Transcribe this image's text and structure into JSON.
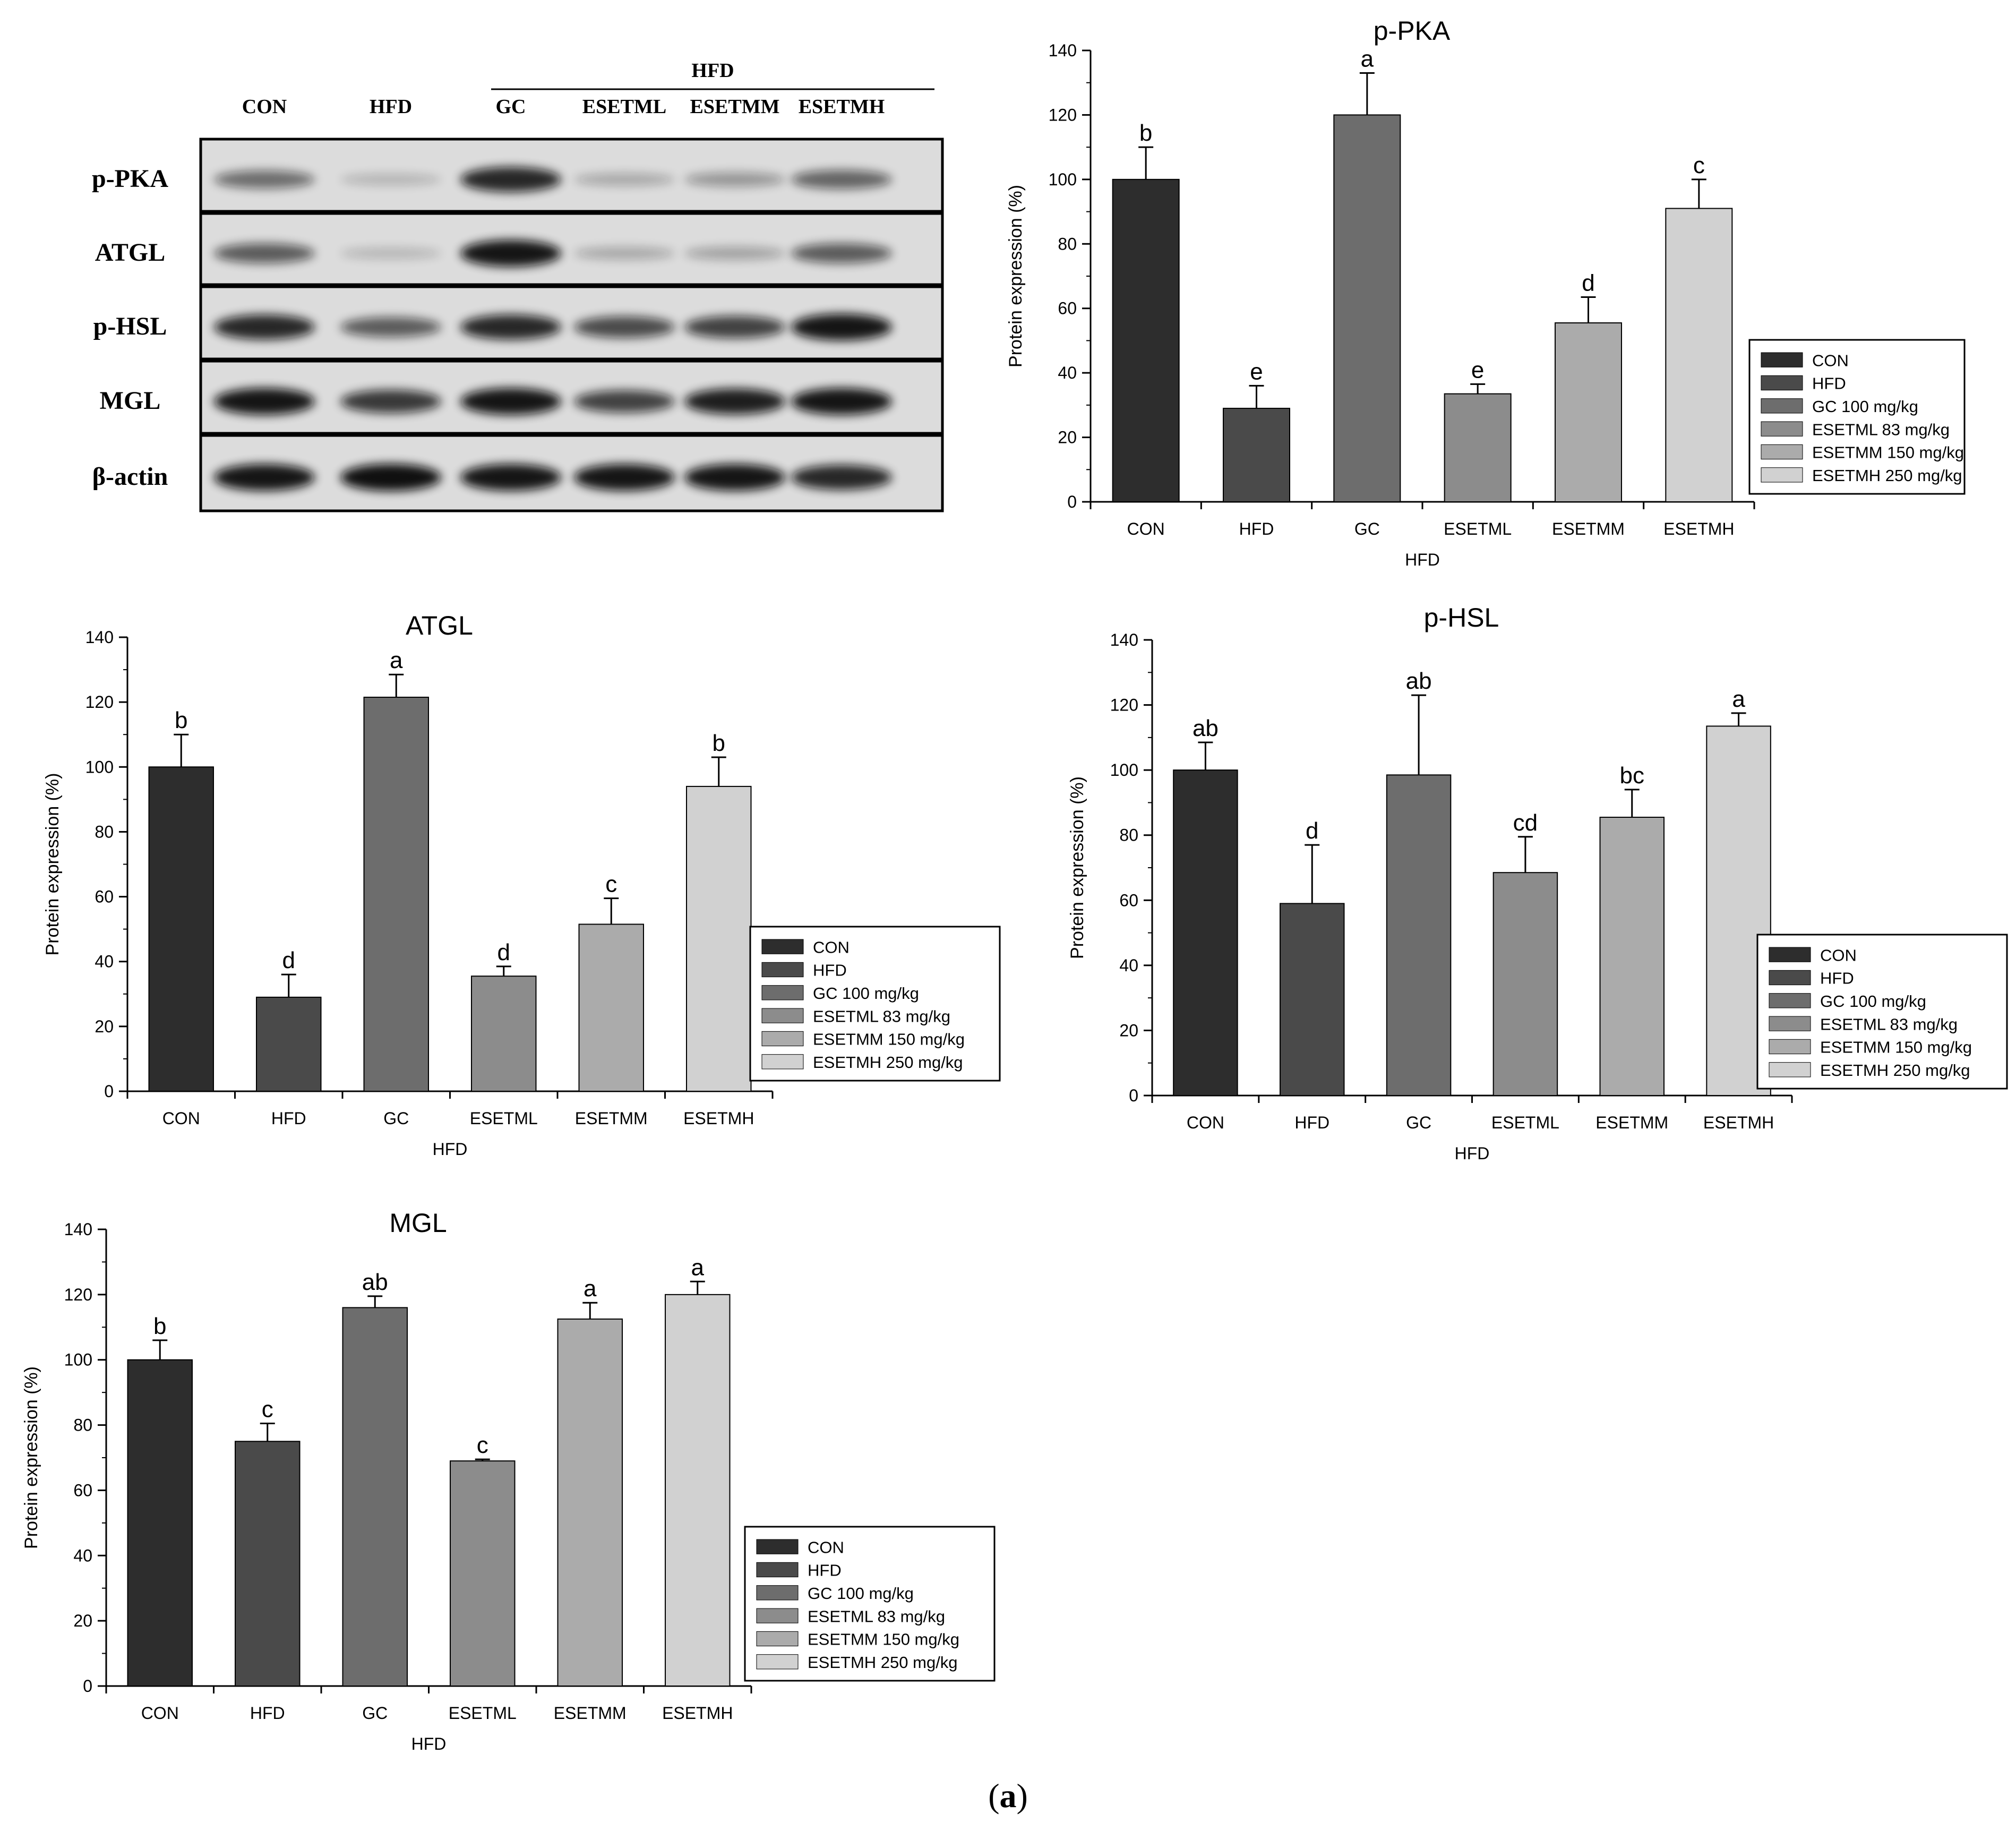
{
  "figure": {
    "panel_label_open": "(",
    "panel_label_letter": "a",
    "panel_label_close": ")"
  },
  "western_blot": {
    "group_header": "HFD",
    "lanes": [
      "CON",
      "HFD",
      "GC",
      "ESETML",
      "ESETMM",
      "ESETMH"
    ],
    "proteins": [
      "p-PKA",
      "ATGL",
      "p-HSL",
      "MGL",
      "β-actin"
    ],
    "band_intensity": [
      [
        0.45,
        0.05,
        0.85,
        0.12,
        0.22,
        0.5
      ],
      [
        0.55,
        0.04,
        0.95,
        0.12,
        0.15,
        0.55
      ],
      [
        0.85,
        0.55,
        0.85,
        0.65,
        0.7,
        0.95
      ],
      [
        0.95,
        0.75,
        0.95,
        0.7,
        0.9,
        0.95
      ],
      [
        0.95,
        0.98,
        0.95,
        0.95,
        0.95,
        0.85
      ]
    ],
    "colors": {
      "background": "#dcdcdc",
      "band": "#111111"
    }
  },
  "chart_data": [
    {
      "type": "bar",
      "title": "p-PKA",
      "xlabel": "HFD",
      "ylabel": "Protein expression (%)",
      "ylim": [
        0,
        140
      ],
      "yticks": [
        0,
        20,
        40,
        60,
        80,
        100,
        120,
        140
      ],
      "categories": [
        "CON",
        "HFD",
        "GC",
        "ESETML",
        "ESETMM",
        "ESETMH"
      ],
      "values": [
        100,
        29,
        120,
        33.5,
        55.5,
        91
      ],
      "errors": [
        10,
        7,
        13,
        3,
        8,
        9
      ],
      "letters": [
        "b",
        "e",
        "a",
        "e",
        "d",
        "c"
      ],
      "legend": [
        "CON",
        "HFD",
        "GC 100 mg/kg",
        "ESETML 83 mg/kg",
        "ESETMM 150 mg/kg",
        "ESETMH 250 mg/kg"
      ]
    },
    {
      "type": "bar",
      "title": "ATGL",
      "xlabel": "HFD",
      "ylabel": "Protein expression (%)",
      "ylim": [
        0,
        140
      ],
      "yticks": [
        0,
        20,
        40,
        60,
        80,
        100,
        120,
        140
      ],
      "categories": [
        "CON",
        "HFD",
        "GC",
        "ESETML",
        "ESETMM",
        "ESETMH"
      ],
      "values": [
        100,
        29,
        121.5,
        35.5,
        51.5,
        94
      ],
      "errors": [
        10,
        7,
        7,
        3,
        8,
        9
      ],
      "letters": [
        "b",
        "d",
        "a",
        "d",
        "c",
        "b"
      ],
      "legend": [
        "CON",
        "HFD",
        "GC 100 mg/kg",
        "ESETML 83 mg/kg",
        "ESETMM 150 mg/kg",
        "ESETMH 250 mg/kg"
      ]
    },
    {
      "type": "bar",
      "title": "p-HSL",
      "xlabel": "HFD",
      "ylabel": "Protein expression (%)",
      "ylim": [
        0,
        140
      ],
      "yticks": [
        0,
        20,
        40,
        60,
        80,
        100,
        120,
        140
      ],
      "categories": [
        "CON",
        "HFD",
        "GC",
        "ESETML",
        "ESETMM",
        "ESETMH"
      ],
      "values": [
        100,
        59,
        98.5,
        68.5,
        85.5,
        113.5
      ],
      "errors": [
        8.5,
        18,
        24.5,
        11,
        8.5,
        4
      ],
      "letters": [
        "ab",
        "d",
        "ab",
        "cd",
        "bc",
        "a"
      ],
      "legend": [
        "CON",
        "HFD",
        "GC 100 mg/kg",
        "ESETML 83 mg/kg",
        "ESETMM 150 mg/kg",
        "ESETMH 250 mg/kg"
      ]
    },
    {
      "type": "bar",
      "title": "MGL",
      "xlabel": "HFD",
      "ylabel": "Protein expression (%)",
      "ylim": [
        0,
        140
      ],
      "yticks": [
        0,
        20,
        40,
        60,
        80,
        100,
        120,
        140
      ],
      "categories": [
        "CON",
        "HFD",
        "GC",
        "ESETML",
        "ESETMM",
        "ESETMH"
      ],
      "values": [
        100,
        75,
        116,
        69,
        112.5,
        120
      ],
      "errors": [
        6,
        5.5,
        3.5,
        0.5,
        5,
        4
      ],
      "letters": [
        "b",
        "c",
        "ab",
        "c",
        "a",
        "a"
      ],
      "legend": [
        "CON",
        "HFD",
        "GC 100 mg/kg",
        "ESETML 83 mg/kg",
        "ESETMM 150 mg/kg",
        "ESETMH 250 mg/kg"
      ]
    }
  ],
  "colors": {
    "series": [
      "#2d2d2d",
      "#4a4a4a",
      "#6d6d6d",
      "#8c8c8c",
      "#ababab",
      "#d1d1d1"
    ]
  }
}
